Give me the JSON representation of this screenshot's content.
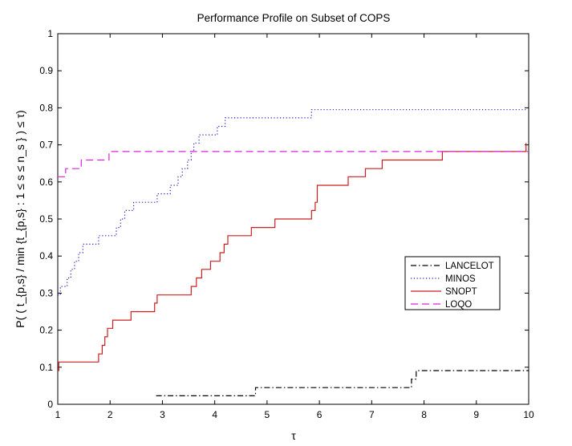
{
  "chart_data": {
    "type": "line",
    "title": "Performance Profile on Subset of COPS",
    "xlabel": "τ",
    "ylabel": "P( ( t_{p,s} / min {t_{p,s} : 1 ≤ s ≤ n_s } ) ≤ τ)",
    "xlim": [
      1,
      10
    ],
    "ylim": [
      0,
      1
    ],
    "xticks": [
      1,
      2,
      3,
      4,
      5,
      6,
      7,
      8,
      9,
      10
    ],
    "yticks": [
      0,
      0.1,
      0.2,
      0.3,
      0.4,
      0.5,
      0.6,
      0.7,
      0.8,
      0.9,
      1
    ],
    "grid": false,
    "legend_position": "center-right",
    "step": true,
    "series": [
      {
        "name": "LANCELOT",
        "color": "#000000",
        "dash": "dashdot",
        "x": [
          2.88,
          4.78,
          4.8,
          7.76,
          7.85,
          10.0
        ],
        "y": [
          0.023,
          0.045,
          0.045,
          0.068,
          0.091,
          0.091
        ]
      },
      {
        "name": "MINOS",
        "color": "#1f1fbf",
        "dash": "dotted",
        "x": [
          1.0,
          1.05,
          1.18,
          1.25,
          1.32,
          1.4,
          1.48,
          1.58,
          1.78,
          2.12,
          2.2,
          2.28,
          2.38,
          2.45,
          2.7,
          2.9,
          3.15,
          3.3,
          3.38,
          3.48,
          3.55,
          3.6,
          3.7,
          4.05,
          4.2,
          4.3,
          4.35,
          5.85,
          9.95
        ],
        "y": [
          0.295,
          0.318,
          0.341,
          0.364,
          0.386,
          0.409,
          0.432,
          0.432,
          0.455,
          0.477,
          0.5,
          0.523,
          0.523,
          0.545,
          0.545,
          0.568,
          0.591,
          0.614,
          0.636,
          0.659,
          0.682,
          0.705,
          0.727,
          0.75,
          0.773,
          0.773,
          0.773,
          0.795,
          0.795
        ]
      },
      {
        "name": "SNOPT",
        "color": "#cc2020",
        "dash": "solid",
        "x": [
          1.0,
          1.02,
          1.78,
          1.85,
          1.9,
          1.95,
          2.05,
          2.4,
          2.55,
          2.85,
          2.9,
          3.55,
          3.65,
          3.75,
          3.92,
          4.1,
          4.18,
          4.25,
          4.4,
          4.7,
          5.15,
          5.85,
          5.92,
          5.96,
          6.55,
          6.78,
          6.88,
          7.2,
          7.7,
          8.35,
          9.95
        ],
        "y": [
          0.091,
          0.114,
          0.136,
          0.159,
          0.182,
          0.205,
          0.227,
          0.25,
          0.25,
          0.273,
          0.295,
          0.318,
          0.341,
          0.364,
          0.386,
          0.409,
          0.432,
          0.455,
          0.455,
          0.477,
          0.5,
          0.523,
          0.545,
          0.591,
          0.614,
          0.614,
          0.636,
          0.659,
          0.659,
          0.682,
          0.705
        ]
      },
      {
        "name": "LOQO",
        "color": "#dd22dd",
        "dash": "dashed",
        "x": [
          1.0,
          1.15,
          1.45,
          1.98,
          10.0
        ],
        "y": [
          0.614,
          0.636,
          0.659,
          0.682,
          0.682
        ]
      }
    ]
  }
}
